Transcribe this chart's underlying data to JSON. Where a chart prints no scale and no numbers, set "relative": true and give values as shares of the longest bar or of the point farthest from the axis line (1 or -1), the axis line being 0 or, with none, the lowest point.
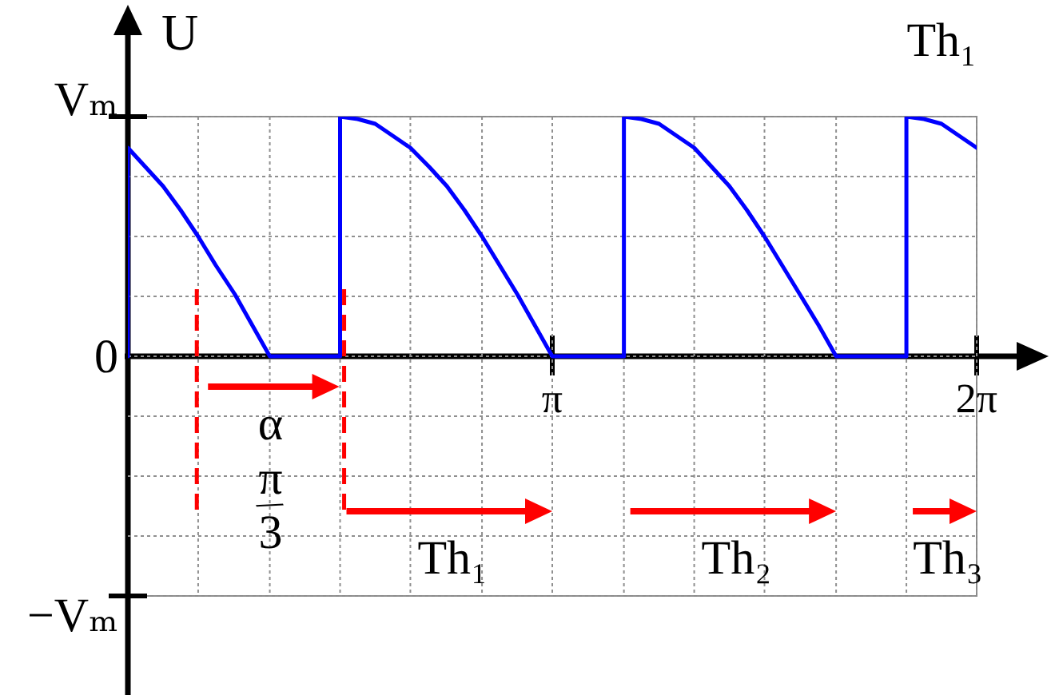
{
  "chart_data": {
    "type": "line",
    "relative": true,
    "ylabel": "U",
    "x": [
      0,
      0,
      0.13,
      0.26,
      0.39,
      0.52,
      0.65,
      0.79,
      0.92,
      1.05,
      1.57,
      1.57,
      1.7,
      1.83,
      1.96,
      2.09,
      2.23,
      2.36,
      2.49,
      2.62,
      2.75,
      2.88,
      3.01,
      3.14,
      3.67,
      3.67,
      3.8,
      3.93,
      4.06,
      4.19,
      4.32,
      4.45,
      4.58,
      4.71,
      4.84,
      4.97,
      5.11,
      5.24,
      5.76,
      5.76,
      5.89,
      6.02,
      6.15,
      6.28
    ],
    "series": [
      {
        "color": "#0000ff",
        "values": [
          0,
          0.87,
          0.79,
          0.71,
          0.61,
          0.5,
          0.38,
          0.26,
          0.13,
          0,
          0,
          1,
          0.99,
          0.97,
          0.92,
          0.87,
          0.79,
          0.71,
          0.61,
          0.5,
          0.38,
          0.26,
          0.13,
          0,
          0,
          1,
          0.99,
          0.97,
          0.92,
          0.87,
          0.79,
          0.71,
          0.61,
          0.5,
          0.38,
          0.26,
          0.13,
          0,
          0,
          1,
          0.99,
          0.97,
          0.92,
          0.87
        ]
      }
    ],
    "annotations": [
      "Th₁",
      "Vₘ",
      "0",
      "−Vₘ",
      "α",
      "π/3",
      "Th₁",
      "Th₂",
      "Th₃"
    ],
    "ref_lines": [
      {
        "axis": "x",
        "value": 0.51,
        "color": "#ff0000",
        "line_style": "dashed"
      },
      {
        "axis": "x",
        "value": 1.6,
        "color": "#ff0000",
        "line_style": "dashed"
      }
    ],
    "xlim": [
      0,
      6.28
    ],
    "xticks": [
      {
        "value": 0.52,
        "label": null
      },
      {
        "value": 1.05,
        "label": null
      },
      {
        "value": 1.57,
        "label": null
      },
      {
        "value": 2.09,
        "label": null
      },
      {
        "value": 2.62,
        "label": null
      },
      {
        "value": 3.14,
        "label": "π"
      },
      {
        "value": 3.67,
        "label": null
      },
      {
        "value": 4.19,
        "label": null
      },
      {
        "value": 4.71,
        "label": null
      },
      {
        "value": 5.24,
        "label": null
      },
      {
        "value": 5.76,
        "label": null
      },
      {
        "value": 6.28,
        "label": "2π"
      }
    ],
    "grid": true
  }
}
